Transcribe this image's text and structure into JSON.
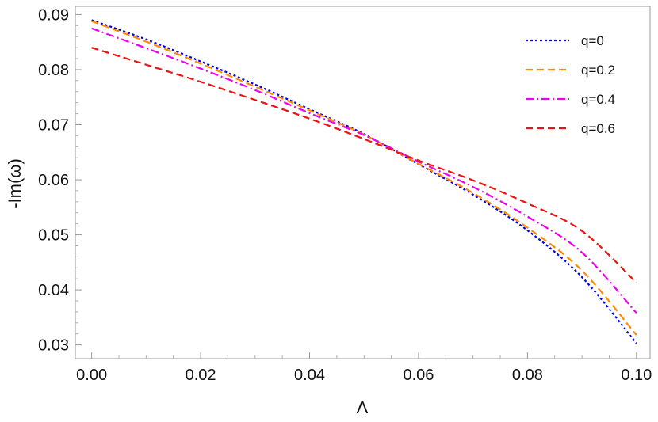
{
  "chart_data": {
    "type": "line",
    "title": "",
    "xlabel": "Λ",
    "ylabel": "-Im(ω)",
    "xlim": [
      -0.003,
      0.1025
    ],
    "ylim": [
      0.0275,
      0.0915
    ],
    "xticks": [
      0.0,
      0.02,
      0.04,
      0.06,
      0.08,
      0.1
    ],
    "xtick_labels": [
      "0.00",
      "0.02",
      "0.04",
      "0.06",
      "0.08",
      "0.10"
    ],
    "yticks": [
      0.03,
      0.04,
      0.05,
      0.06,
      0.07,
      0.08,
      0.09
    ],
    "ytick_labels": [
      "0.03",
      "0.04",
      "0.05",
      "0.06",
      "0.07",
      "0.08",
      "0.09"
    ],
    "grid": false,
    "legend_position": "top-right",
    "x": [
      0.0,
      0.01,
      0.02,
      0.03,
      0.04,
      0.05,
      0.06,
      0.07,
      0.08,
      0.09,
      0.1
    ],
    "series": [
      {
        "name": "q=0",
        "color": "#0000ee",
        "dash": "dotted",
        "values": [
          0.089,
          0.0855,
          0.0815,
          0.0773,
          0.0728,
          0.0683,
          0.0628,
          0.0573,
          0.0508,
          0.0423,
          0.0303
        ]
      },
      {
        "name": "q=0.2",
        "color": "#ff8c00",
        "dash": "dashed",
        "values": [
          0.0888,
          0.0851,
          0.0811,
          0.0769,
          0.0726,
          0.0682,
          0.0629,
          0.0576,
          0.0513,
          0.0435,
          0.0318
        ]
      },
      {
        "name": "q=0.4",
        "color": "#ee00ee",
        "dash": "dashdot",
        "values": [
          0.0875,
          0.0839,
          0.0802,
          0.0763,
          0.0721,
          0.0681,
          0.0633,
          0.0587,
          0.0533,
          0.0468,
          0.0358
        ]
      },
      {
        "name": "q=0.6",
        "color": "#ee1111",
        "dash": "dashed",
        "values": [
          0.084,
          0.0809,
          0.0778,
          0.0745,
          0.0711,
          0.0674,
          0.0635,
          0.0599,
          0.0557,
          0.0507,
          0.0413
        ]
      }
    ]
  }
}
